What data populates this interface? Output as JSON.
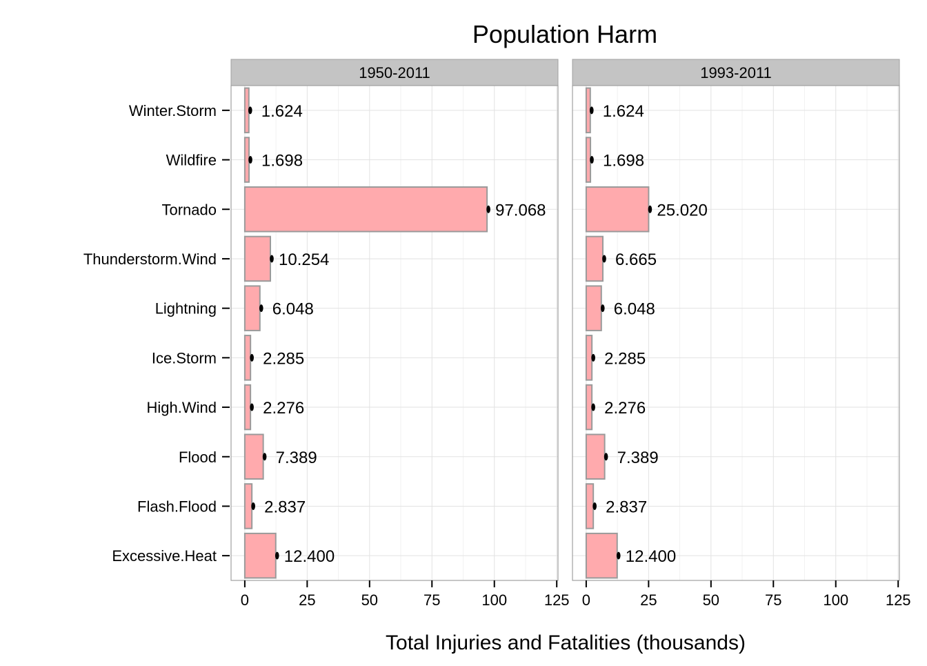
{
  "chart_data": {
    "type": "bar",
    "orientation": "horizontal",
    "title": "Population Harm",
    "xlabel": "Total Injuries and Fatalities (thousands)",
    "ylabel": "",
    "xlim": [
      -5.5,
      125.5
    ],
    "x_ticks": [
      0,
      25,
      50,
      75,
      100,
      125
    ],
    "categories": [
      "Winter.Storm",
      "Wildfire",
      "Tornado",
      "Thunderstorm.Wind",
      "Lightning",
      "Ice.Storm",
      "High.Wind",
      "Flood",
      "Flash.Flood",
      "Excessive.Heat"
    ],
    "panels": [
      {
        "label": "1950-2011",
        "values": [
          1.624,
          1.698,
          97.068,
          10.254,
          6.048,
          2.285,
          2.276,
          7.389,
          2.837,
          12.4
        ],
        "value_labels": [
          "1.624",
          "1.698",
          "97.068",
          "10.254",
          "6.048",
          "2.285",
          "2.276",
          "7.389",
          "2.837",
          "12.400"
        ]
      },
      {
        "label": "1993-2011",
        "values": [
          1.624,
          1.698,
          25.02,
          6.665,
          6.048,
          2.285,
          2.276,
          7.389,
          2.837,
          12.4
        ],
        "value_labels": [
          "1.624",
          "1.698",
          "25.020",
          "6.665",
          "6.048",
          "2.285",
          "2.276",
          "7.389",
          "2.837",
          "12.400"
        ]
      }
    ],
    "grid": true,
    "colors": {
      "bar_fill": "#ffaaad",
      "bar_stroke": "#9a9a9a",
      "strip_fill": "#c4c4c4",
      "panel_border": "#a0a0a0",
      "grid_major": "#e2e2e2",
      "grid_minor": "#f1f1f1",
      "text": "#000000",
      "marker": "#000000"
    }
  }
}
